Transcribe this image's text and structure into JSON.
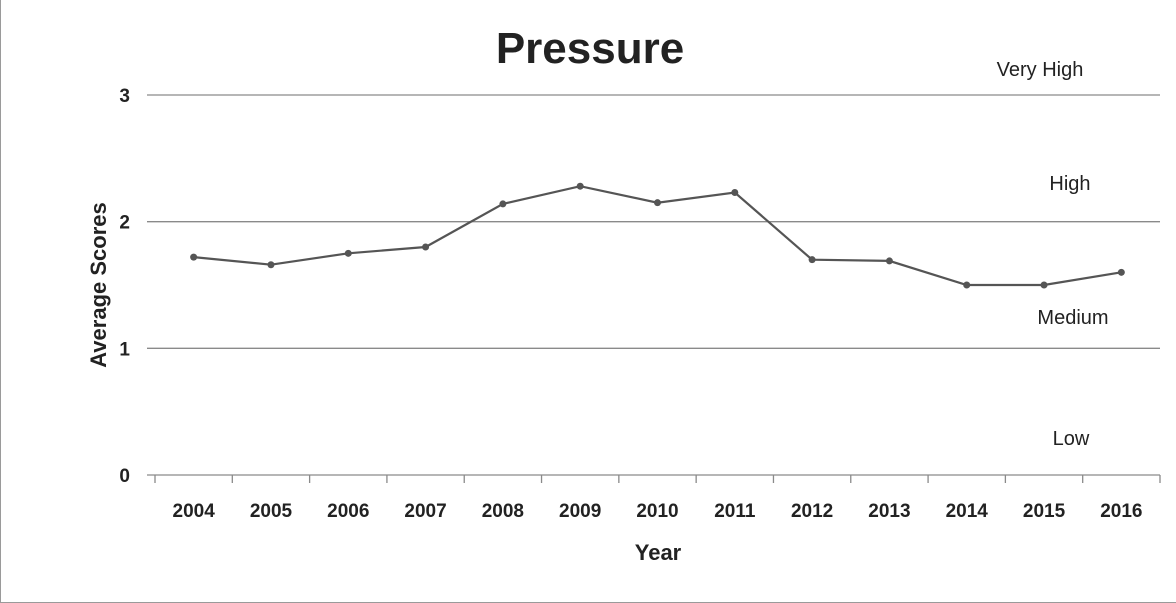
{
  "chart_data": {
    "type": "line",
    "title": "Pressure",
    "xlabel": "Year",
    "ylabel": "Average Scores",
    "categories": [
      "2004",
      "2005",
      "2006",
      "2007",
      "2008",
      "2009",
      "2010",
      "2011",
      "2012",
      "2013",
      "2014",
      "2015",
      "2016"
    ],
    "series": [
      {
        "values": [
          1.72,
          1.66,
          1.75,
          1.8,
          2.14,
          2.28,
          2.15,
          2.23,
          1.7,
          1.69,
          1.5,
          1.5,
          1.6
        ]
      }
    ],
    "ylim": [
      0,
      3
    ],
    "yticks": [
      "0",
      "1",
      "2",
      "3"
    ],
    "grid": true,
    "band_labels": [
      "Very High",
      "High",
      "Medium",
      "Low"
    ],
    "colors": {
      "line": "#555555",
      "marker": "#555555",
      "grid": "#8a8a8a",
      "text": "#222222"
    }
  }
}
